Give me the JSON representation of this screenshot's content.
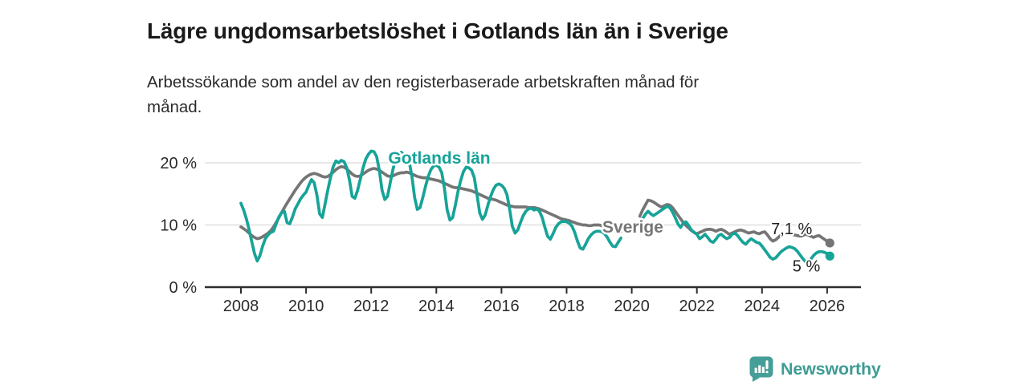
{
  "title": "Lägre ungdomsarbetslöshet i Gotlands län än i Sverige",
  "subtitle": "Arbetssökande som andel av den registerbaserade arbetskraften månad för månad.",
  "subtitle_lines": [
    "Arbetssökande som andel av den registerbaserade arbetskraften månad för",
    "månad."
  ],
  "branding": {
    "logo_text": "Newsworthy",
    "logo_icon": "bar-chart-speech-bubble-icon",
    "logo_color": "#459e97"
  },
  "chart_data": {
    "type": "line",
    "unit": "%",
    "frequency": "monthly",
    "x_start": "2008-01",
    "x_end": "2026-02",
    "grid": "horizontal-only",
    "ylim": [
      0,
      23
    ],
    "y_ticks": [
      {
        "value": 0,
        "label": "0 %"
      },
      {
        "value": 10,
        "label": "10 %"
      },
      {
        "value": 20,
        "label": "20 %"
      }
    ],
    "x_ticks": [
      {
        "year": 2008,
        "label": "2008"
      },
      {
        "year": 2010,
        "label": "2010"
      },
      {
        "year": 2012,
        "label": "2012"
      },
      {
        "year": 2014,
        "label": "2014"
      },
      {
        "year": 2016,
        "label": "2016"
      },
      {
        "year": 2018,
        "label": "2018"
      },
      {
        "year": 2020,
        "label": "2020"
      },
      {
        "year": 2022,
        "label": "2022"
      },
      {
        "year": 2024,
        "label": "2024"
      },
      {
        "year": 2026,
        "label": "2026"
      }
    ],
    "series": [
      {
        "name": "Sverige",
        "color": "#757575",
        "label_color": "#767676",
        "end_label": "7,1 %",
        "values": [
          9.7,
          9.4,
          9.1,
          8.7,
          8.3,
          8,
          7.8,
          7.9,
          8.1,
          8.4,
          8.7,
          9.1,
          9.7,
          10.4,
          11.2,
          12,
          12.8,
          13.5,
          14.2,
          14.9,
          15.6,
          16.2,
          16.8,
          17.3,
          17.7,
          18,
          18.2,
          18.3,
          18.2,
          18,
          17.8,
          17.7,
          17.8,
          18.1,
          18.5,
          18.9,
          19.2,
          19.4,
          19.3,
          19,
          18.6,
          18.2,
          17.9,
          17.8,
          17.9,
          18.2,
          18.5,
          18.8,
          19,
          19.1,
          19,
          18.8,
          18.5,
          18.2,
          17.9,
          17.8,
          17.9,
          18.1,
          18.3,
          18.4,
          18.4,
          18.5,
          18.4,
          18.2,
          18,
          17.8,
          17.7,
          17.6,
          17.6,
          17.5,
          17.4,
          17.3,
          17.2,
          17.1,
          16.9,
          16.7,
          16.5,
          16.3,
          16.1,
          16,
          16,
          15.9,
          15.8,
          15.7,
          15.6,
          15.5,
          15.3,
          15.1,
          14.9,
          14.7,
          14.5,
          14.3,
          14.2,
          14.1,
          14,
          13.8,
          13.6,
          13.4,
          13.2,
          13.1,
          13,
          12.9,
          12.9,
          12.9,
          12.9,
          12.9,
          12.8,
          12.8,
          12.8,
          12.7,
          12.6,
          12.4,
          12.2,
          12,
          11.8,
          11.6,
          11.4,
          11.2,
          11,
          10.9,
          10.8,
          10.7,
          10.5,
          10.4,
          10.2,
          10.1,
          10,
          10,
          9.9,
          9.9,
          10,
          10,
          10,
          9.9,
          9.8,
          9.6,
          9.5,
          9.3,
          9.2,
          9,
          8.9,
          null,
          null,
          null,
          null,
          null,
          null,
          11.4,
          12.4,
          13.2,
          14,
          13.9,
          13.7,
          13.4,
          13.1,
          12.9,
          13.1,
          13.3,
          13.2,
          12.8,
          12.2,
          11.6,
          11,
          10.4,
          9.9,
          9.5,
          9.1,
          8.8,
          8.6,
          8.8,
          9,
          9.2,
          9.3,
          9.3,
          9.2,
          9,
          9.2,
          9.3,
          9.1,
          8.8,
          8.5,
          8.7,
          8.9,
          9.1,
          9.2,
          9.1,
          8.9,
          8.7,
          8.8,
          8.9,
          8.7,
          8.6,
          8.8,
          8.9,
          8.4,
          7.8,
          7.4,
          7.6,
          8,
          8.4,
          8.6,
          8.7,
          8.6,
          8.5,
          8.4,
          8.3,
          8.2,
          8.3,
          8.5,
          8.4,
          8.2,
          8,
          8.2,
          8.3,
          8,
          7.7,
          7.4,
          7.1
        ]
      },
      {
        "name": "Gotlands län",
        "color": "#17a398",
        "label_color": "#17a398",
        "end_label": "5 %",
        "values": [
          13.5,
          12.4,
          11,
          9.3,
          7.3,
          5.4,
          4.2,
          5.1,
          6.6,
          7.8,
          8.4,
          8.8,
          9,
          10.2,
          11.3,
          12,
          12.2,
          10.4,
          10.2,
          11.3,
          12.6,
          13.4,
          14.2,
          14.8,
          15.3,
          16.4,
          17.3,
          16.8,
          14.8,
          11.8,
          11.2,
          13.4,
          15.6,
          17.6,
          19.4,
          20.3,
          20,
          20.4,
          20.2,
          19.2,
          17.2,
          14.6,
          14.3,
          15.6,
          17.4,
          19.2,
          20.6,
          21.4,
          21.9,
          21.8,
          21,
          18.8,
          15.6,
          14.1,
          14.6,
          16.8,
          18.9,
          20.6,
          21.4,
          21.7,
          21.3,
          21,
          20.2,
          17.8,
          14.4,
          12.5,
          12.8,
          14.4,
          16.2,
          17.8,
          18.9,
          19.5,
          19.6,
          19.3,
          18.4,
          15.9,
          12.4,
          10.8,
          11.2,
          13.2,
          15.4,
          17.2,
          18.6,
          19.3,
          19.2,
          18.8,
          17.6,
          14.8,
          11.9,
          10.9,
          11.6,
          13.2,
          14.6,
          15.7,
          16.4,
          16.6,
          16.4,
          15.9,
          14.9,
          12.6,
          9.8,
          8.7,
          9.2,
          10.4,
          11.5,
          12.2,
          12.6,
          12.7,
          12.4,
          12.6,
          12.2,
          11.2,
          9.6,
          8.2,
          7.7,
          8.6,
          9.6,
          10.2,
          10.5,
          10.6,
          10.5,
          10.3,
          9.8,
          8.8,
          7.4,
          6.3,
          6.1,
          6.9,
          7.8,
          8.4,
          8.8,
          9,
          9,
          8.9,
          8.6,
          8,
          7.2,
          6.6,
          6.5,
          7.2,
          7.9,
          null,
          null,
          null,
          null,
          null,
          null,
          10.3,
          11,
          11.7,
          12.2,
          11.8,
          11.5,
          11.8,
          12.1,
          12.4,
          12.7,
          13,
          12.8,
          12.1,
          11.2,
          10.2,
          9.6,
          10.3,
          10.5,
          9.9,
          9.2,
          8.8,
          8.5,
          7.8,
          8.1,
          8.5,
          8,
          7.4,
          7.2,
          7.7,
          8.3,
          8.5,
          8.1,
          7.8,
          8,
          8.5,
          8.7,
          8.3,
          7.7,
          7.2,
          6.9,
          7.4,
          7.8,
          7.5,
          7.2,
          7.1,
          6.6,
          6,
          5.4,
          4.8,
          4.5,
          4.7,
          5.2,
          5.7,
          6,
          6.3,
          6.5,
          6.4,
          6.2,
          5.8,
          5.2,
          4.6,
          4.1,
          4,
          4.5,
          5.1,
          5.5,
          5.7,
          5.7,
          5.6,
          5.4,
          5
        ]
      }
    ]
  }
}
